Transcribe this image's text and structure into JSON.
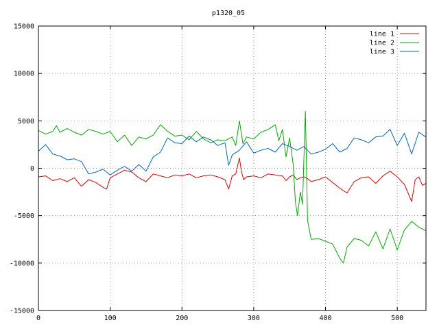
{
  "chart_data": {
    "type": "line",
    "title": "p1320_05",
    "xlabel": "",
    "ylabel": "",
    "xlim": [
      0,
      540
    ],
    "ylim": [
      -15000,
      15000
    ],
    "xticks": [
      0,
      100,
      200,
      300,
      400,
      500
    ],
    "yticks": [
      -15000,
      -10000,
      -5000,
      0,
      5000,
      10000,
      15000
    ],
    "grid": true,
    "legend_position": "top-right",
    "series": [
      {
        "name": "line 1",
        "color": "#dd0000",
        "x": [
          0,
          10,
          20,
          30,
          40,
          50,
          60,
          70,
          80,
          90,
          95,
          100,
          110,
          120,
          130,
          140,
          150,
          160,
          170,
          180,
          190,
          200,
          210,
          220,
          230,
          240,
          250,
          260,
          265,
          270,
          275,
          280,
          283,
          286,
          290,
          300,
          310,
          320,
          330,
          340,
          345,
          350,
          355,
          360,
          365,
          370,
          375,
          380,
          390,
          400,
          410,
          420,
          430,
          440,
          450,
          460,
          470,
          480,
          490,
          500,
          510,
          520,
          525,
          530,
          535,
          540
        ],
        "y": [
          -900,
          -800,
          -1300,
          -1100,
          -1400,
          -1000,
          -1900,
          -1200,
          -1500,
          -2000,
          -2200,
          -1000,
          -600,
          -200,
          -400,
          -1000,
          -1400,
          -600,
          -800,
          -1000,
          -700,
          -800,
          -600,
          -1000,
          -800,
          -700,
          -900,
          -1200,
          -2200,
          -800,
          -600,
          1100,
          -400,
          -1200,
          -900,
          -800,
          -1000,
          -600,
          -700,
          -800,
          -1300,
          -900,
          -700,
          -1200,
          -1000,
          -900,
          -1100,
          -1400,
          -1200,
          -900,
          -1500,
          -2100,
          -2600,
          -1400,
          -1000,
          -900,
          -1600,
          -800,
          -300,
          -900,
          -1700,
          -3500,
          -1200,
          -900,
          -1800,
          -1600
        ]
      },
      {
        "name": "line 2",
        "color": "#00aa00",
        "x": [
          0,
          10,
          20,
          25,
          30,
          40,
          50,
          60,
          70,
          80,
          90,
          100,
          110,
          120,
          130,
          140,
          150,
          160,
          170,
          180,
          190,
          200,
          210,
          220,
          230,
          240,
          250,
          260,
          270,
          275,
          280,
          285,
          290,
          300,
          310,
          320,
          330,
          335,
          340,
          345,
          350,
          355,
          358,
          361,
          365,
          368,
          372,
          375,
          380,
          390,
          400,
          410,
          420,
          425,
          430,
          440,
          450,
          460,
          470,
          480,
          490,
          500,
          510,
          520,
          530,
          540
        ],
        "y": [
          4000,
          3600,
          3900,
          4500,
          3800,
          4200,
          3800,
          3500,
          4100,
          3900,
          3600,
          3900,
          2800,
          3500,
          2400,
          3300,
          3100,
          3500,
          4600,
          3900,
          3400,
          3500,
          3000,
          3900,
          3100,
          2700,
          3000,
          2900,
          3300,
          2400,
          5000,
          2600,
          3300,
          3100,
          3800,
          4100,
          4600,
          2900,
          4100,
          1200,
          3200,
          400,
          -3500,
          -5000,
          -2500,
          -3800,
          6000,
          -5500,
          -7500,
          -7400,
          -7700,
          -8000,
          -9500,
          -10000,
          -8300,
          -7400,
          -7600,
          -8200,
          -6700,
          -8500,
          -6400,
          -8600,
          -6500,
          -5600,
          -6200,
          -6600
        ]
      },
      {
        "name": "line 3",
        "color": "#0066cc",
        "x": [
          0,
          10,
          20,
          30,
          40,
          50,
          60,
          70,
          80,
          90,
          100,
          110,
          120,
          130,
          140,
          150,
          160,
          170,
          180,
          190,
          200,
          210,
          220,
          230,
          240,
          250,
          260,
          265,
          270,
          280,
          290,
          300,
          310,
          320,
          330,
          340,
          350,
          360,
          370,
          380,
          390,
          400,
          410,
          420,
          430,
          440,
          450,
          460,
          470,
          480,
          490,
          500,
          510,
          520,
          530,
          540
        ],
        "y": [
          1800,
          2500,
          1500,
          1300,
          900,
          1000,
          700,
          -600,
          -400,
          -100,
          -700,
          -200,
          200,
          -300,
          400,
          -300,
          1200,
          1700,
          3200,
          2700,
          2600,
          3400,
          2800,
          3300,
          3000,
          2400,
          2700,
          300,
          1400,
          1900,
          2800,
          1600,
          1900,
          2100,
          1700,
          2600,
          2300,
          1900,
          2300,
          1500,
          1700,
          2000,
          2600,
          1700,
          2100,
          3200,
          3000,
          2700,
          3300,
          3400,
          4100,
          2400,
          3700,
          1500,
          3800,
          3300
        ]
      }
    ]
  }
}
